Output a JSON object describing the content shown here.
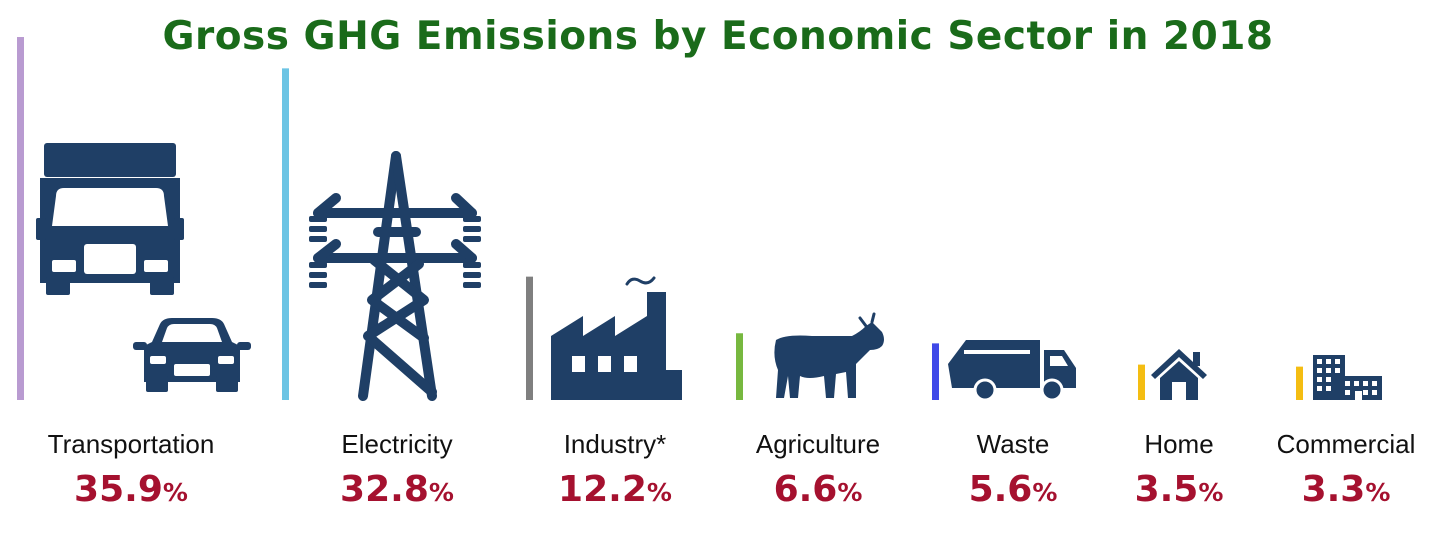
{
  "title": "Gross GHG Emissions by Economic Sector in 2018",
  "colors": {
    "title": "#1a6b1a",
    "icon": "#1f3f66",
    "value": "#a5112f"
  },
  "chart_data": {
    "type": "bar",
    "title": "Gross GHG Emissions by Economic Sector in 2018",
    "unit": "%",
    "ylim": [
      0,
      36
    ],
    "grid": false,
    "legend": "none",
    "categories": [
      "Transportation",
      "Electricity",
      "Industry*",
      "Agriculture",
      "Waste",
      "Home",
      "Commercial"
    ],
    "values": [
      35.9,
      32.8,
      12.2,
      6.6,
      5.6,
      3.5,
      3.3
    ],
    "value_labels": [
      "35.9",
      "32.8",
      "12.2",
      "6.6",
      "5.6",
      "3.5",
      "3.3"
    ],
    "bar_colors": [
      "#b99bd1",
      "#6cc4e4",
      "#7f7f7f",
      "#77b83f",
      "#3f49e8",
      "#f4bd12",
      "#f4bd12"
    ],
    "icons": [
      "truck-icon",
      "power-tower-icon",
      "factory-icon",
      "cow-icon",
      "garbage-truck-icon",
      "house-icon",
      "office-building-icon"
    ]
  }
}
